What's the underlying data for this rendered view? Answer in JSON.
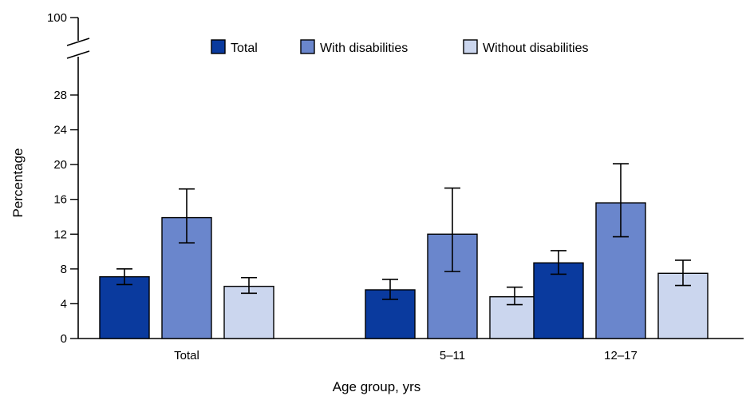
{
  "chart_data": {
    "type": "bar",
    "categories": [
      "Total",
      "5–11",
      "12–17"
    ],
    "series": [
      {
        "name": "Total",
        "color": "#0a3a9e",
        "values": [
          7.1,
          5.6,
          8.7
        ],
        "err_low": [
          6.2,
          4.5,
          7.4
        ],
        "err_high": [
          8.0,
          6.8,
          10.1
        ]
      },
      {
        "name": "With disabilities",
        "color": "#6a86cc",
        "values": [
          13.9,
          12.0,
          15.6
        ],
        "err_low": [
          11.0,
          7.7,
          11.7
        ],
        "err_high": [
          17.2,
          17.3,
          20.1
        ]
      },
      {
        "name": "Without disabilities",
        "color": "#cbd6ee",
        "values": [
          6.0,
          4.8,
          7.5
        ],
        "err_low": [
          5.2,
          3.9,
          6.1
        ],
        "err_high": [
          7.0,
          5.9,
          9.0
        ]
      }
    ],
    "xlabel": "Age group, yrs",
    "ylabel": "Percentage",
    "ylim": [
      0,
      28
    ],
    "yticks": [
      0,
      4,
      8,
      12,
      16,
      20,
      24,
      28
    ],
    "axis_break": true,
    "ymax_label": "100",
    "legend_position": "top-center",
    "grid": false
  }
}
